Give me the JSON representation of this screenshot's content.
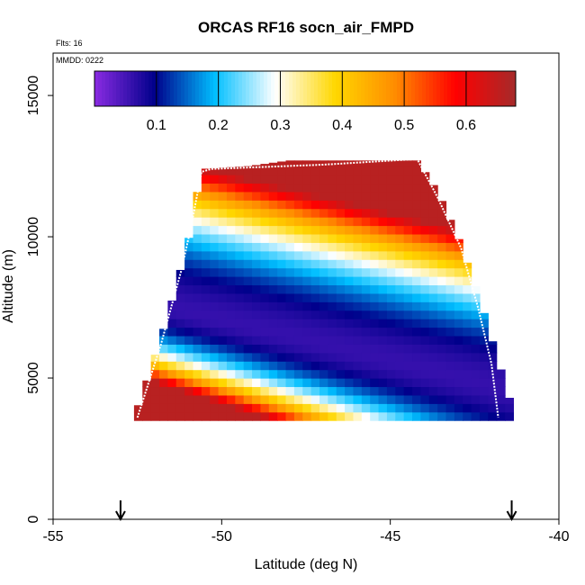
{
  "chart_data": {
    "type": "heatmap",
    "title": "ORCAS RF16 socn_air_FMPD",
    "annotations": {
      "flights": "Flts: 16",
      "mmdd": "MMDD: 0222"
    },
    "xlabel": "Latitude (deg N)",
    "ylabel": "Altitude (m)",
    "xlim": [
      -55,
      -40
    ],
    "ylim": [
      0,
      16500
    ],
    "x_ticks": [
      -55,
      -50,
      -45,
      -40
    ],
    "x_tick_labels": [
      "-55",
      "-50",
      "-45",
      "-40"
    ],
    "y_ticks": [
      0,
      5000,
      10000,
      15000
    ],
    "y_tick_labels": [
      "0",
      "5000",
      "10000",
      "15000"
    ],
    "colorbar": {
      "range": [
        0,
        0.68
      ],
      "ticks": [
        0.1,
        0.2,
        0.3,
        0.4,
        0.5,
        0.6
      ],
      "tick_labels": [
        "0.1",
        "0.2",
        "0.3",
        "0.4",
        "0.5",
        "0.6"
      ],
      "colors": [
        "#8a2be2",
        "#00008b",
        "#00bfff",
        "#ffffff",
        "#ffd700",
        "#ff8c00",
        "#ff0000",
        "#a52a2a"
      ]
    },
    "field": {
      "lat_min": -52.6,
      "lat_max": -41.4,
      "lat_step": 0.25,
      "alt_min": 3500,
      "alt_step": 300,
      "top_profile": [
        {
          "lat": -52.6,
          "alt": 3600
        },
        {
          "lat": -52.2,
          "alt": 5000
        },
        {
          "lat": -51.6,
          "alt": 7200
        },
        {
          "lat": -51.0,
          "alt": 9800
        },
        {
          "lat": -50.6,
          "alt": 12400
        },
        {
          "lat": -49.2,
          "alt": 12500
        },
        {
          "lat": -48.0,
          "alt": 12700
        },
        {
          "lat": -44.2,
          "alt": 12700
        },
        {
          "lat": -43.6,
          "alt": 11600
        },
        {
          "lat": -43.0,
          "alt": 10000
        },
        {
          "lat": -42.4,
          "alt": 8000
        },
        {
          "lat": -41.9,
          "alt": 6000
        },
        {
          "lat": -41.4,
          "alt": 4000
        }
      ]
    },
    "flight_track": [
      {
        "lat": -52.5,
        "alt": 3600
      },
      {
        "lat": -51.8,
        "alt": 6200
      },
      {
        "lat": -51.2,
        "alt": 8800
      },
      {
        "lat": -50.9,
        "alt": 10400
      },
      {
        "lat": -50.6,
        "alt": 12300
      },
      {
        "lat": -50.3,
        "alt": 12400
      },
      {
        "lat": -47.0,
        "alt": 12550
      },
      {
        "lat": -44.2,
        "alt": 12750
      },
      {
        "lat": -43.6,
        "alt": 11400
      },
      {
        "lat": -42.9,
        "alt": 9600
      },
      {
        "lat": -42.4,
        "alt": 7500
      },
      {
        "lat": -42.0,
        "alt": 5500
      },
      {
        "lat": -41.8,
        "alt": 3600
      }
    ],
    "markers": [
      {
        "name": "start-arrow",
        "lat": -53.0
      },
      {
        "name": "end-arrow",
        "lat": -41.4
      }
    ]
  }
}
